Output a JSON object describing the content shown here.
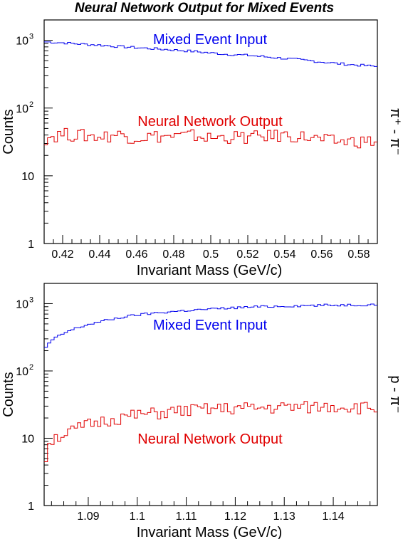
{
  "figure_title": "Neural Network Output for Mixed Events",
  "colors": {
    "mixed": "#0000ee",
    "nn": "#e00000",
    "axis": "#000000"
  },
  "chart_data": [
    {
      "type": "histogram",
      "ylabel": "Counts",
      "xlabel": "Invariant Mass (GeV/c)",
      "side_label": "π⁺ - π⁻",
      "yscale": "log",
      "xlim": [
        0.41,
        0.59
      ],
      "ylim": [
        1,
        2000
      ],
      "xticks": [
        0.42,
        0.44,
        0.46,
        0.48,
        0.5,
        0.52,
        0.54,
        0.56,
        0.58
      ],
      "xtick_labels": [
        "0.42",
        "0.44",
        "0.46",
        "0.48",
        "0.5",
        "0.52",
        "0.54",
        "0.56",
        "0.58"
      ],
      "ymajor": [
        {
          "base": "1",
          "exp": ""
        },
        {
          "base": "10",
          "exp": ""
        },
        {
          "base": "10",
          "exp": "2"
        },
        {
          "base": "10",
          "exp": "3"
        }
      ],
      "annotations": {
        "mixed": "Mixed Event Input",
        "nn": "Neural Network Output"
      },
      "series": [
        {
          "name": "Mixed Event Input",
          "color": "#0000ee",
          "x": [
            0.41,
            0.42,
            0.43,
            0.44,
            0.45,
            0.46,
            0.47,
            0.48,
            0.49,
            0.5,
            0.51,
            0.52,
            0.53,
            0.54,
            0.55,
            0.56,
            0.57,
            0.58,
            0.59
          ],
          "y": [
            950,
            920,
            880,
            850,
            810,
            780,
            750,
            720,
            690,
            650,
            620,
            600,
            570,
            540,
            510,
            480,
            450,
            430,
            410
          ]
        },
        {
          "name": "Neural Network Output",
          "color": "#e00000",
          "x": [
            0.41,
            0.42,
            0.43,
            0.44,
            0.45,
            0.46,
            0.47,
            0.48,
            0.49,
            0.5,
            0.51,
            0.52,
            0.53,
            0.54,
            0.55,
            0.56,
            0.57,
            0.58,
            0.59
          ],
          "y": [
            36,
            42,
            40,
            38,
            41,
            37,
            39,
            38,
            40,
            36,
            38,
            37,
            39,
            40,
            38,
            34,
            32,
            33,
            32
          ]
        }
      ]
    },
    {
      "type": "histogram",
      "ylabel": "Counts",
      "xlabel": "Invariant Mass (GeV/c)",
      "side_label": "p - π⁻",
      "yscale": "log",
      "xlim": [
        1.081,
        1.149
      ],
      "ylim": [
        1,
        2000
      ],
      "xticks": [
        1.09,
        1.1,
        1.11,
        1.12,
        1.13,
        1.14
      ],
      "xtick_labels": [
        "1.09",
        "1.1",
        "1.11",
        "1.12",
        "1.13",
        "1.14"
      ],
      "ymajor": [
        {
          "base": "1",
          "exp": ""
        },
        {
          "base": "10",
          "exp": ""
        },
        {
          "base": "10",
          "exp": "2"
        },
        {
          "base": "10",
          "exp": "3"
        }
      ],
      "annotations": {
        "mixed": "Mixed Event Input",
        "nn": "Neural Network Output"
      },
      "series": [
        {
          "name": "Mixed Event Input",
          "color": "#0000ee",
          "x": [
            1.081,
            1.082,
            1.084,
            1.086,
            1.088,
            1.09,
            1.093,
            1.096,
            1.1,
            1.105,
            1.11,
            1.115,
            1.12,
            1.125,
            1.13,
            1.135,
            1.14,
            1.145,
            1.149
          ],
          "y": [
            200,
            260,
            330,
            390,
            440,
            490,
            550,
            610,
            680,
            740,
            790,
            830,
            870,
            900,
            920,
            940,
            950,
            960,
            970
          ]
        },
        {
          "name": "Neural Network Output",
          "color": "#e00000",
          "x": [
            1.081,
            1.082,
            1.084,
            1.086,
            1.088,
            1.09,
            1.093,
            1.096,
            1.1,
            1.105,
            1.11,
            1.115,
            1.12,
            1.125,
            1.13,
            1.135,
            1.14,
            1.145,
            1.149
          ],
          "y": [
            3,
            9,
            11,
            12,
            14,
            16,
            18,
            20,
            22,
            24,
            26,
            27,
            28,
            28,
            29,
            29,
            30,
            29,
            28
          ]
        }
      ]
    }
  ]
}
